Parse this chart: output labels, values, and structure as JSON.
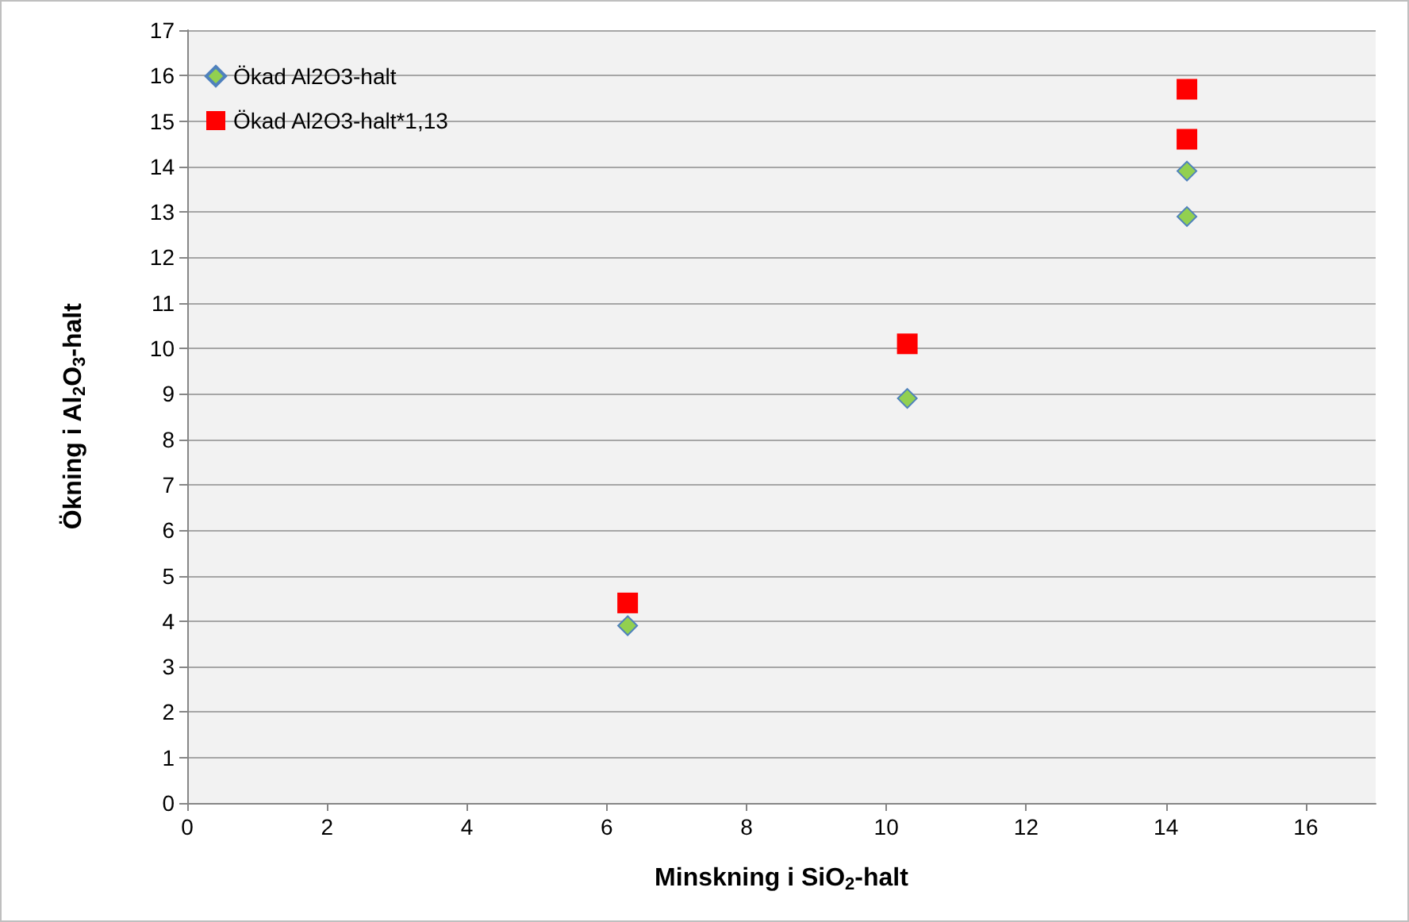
{
  "chart_data": {
    "type": "scatter",
    "xlabel": "Minskning i SiO$_{2}$-halt",
    "ylabel": "Ökning i Al$_{2}$O$_{3}$-halt",
    "x": [
      6.3,
      10.3,
      14.3,
      14.3
    ],
    "series": [
      {
        "name": "Ökad Al2O3-halt",
        "color": "#92d050",
        "marker": "diamond",
        "values": [
          3.9,
          8.9,
          13.9,
          12.9
        ]
      },
      {
        "name": "Ökad Al2O3-halt*1,13",
        "color": "#ff0000",
        "marker": "square",
        "values": [
          4.4,
          10.1,
          15.7,
          14.6
        ]
      }
    ],
    "xlim": [
      0,
      17
    ],
    "xticks": [
      0,
      2,
      4,
      6,
      8,
      10,
      12,
      14,
      16
    ],
    "ylim": [
      0,
      17
    ],
    "yticks": [
      0,
      1,
      2,
      3,
      4,
      5,
      6,
      7,
      8,
      9,
      10,
      11,
      12,
      13,
      14,
      15,
      16,
      17
    ],
    "grid": "y",
    "legend": "top left"
  }
}
